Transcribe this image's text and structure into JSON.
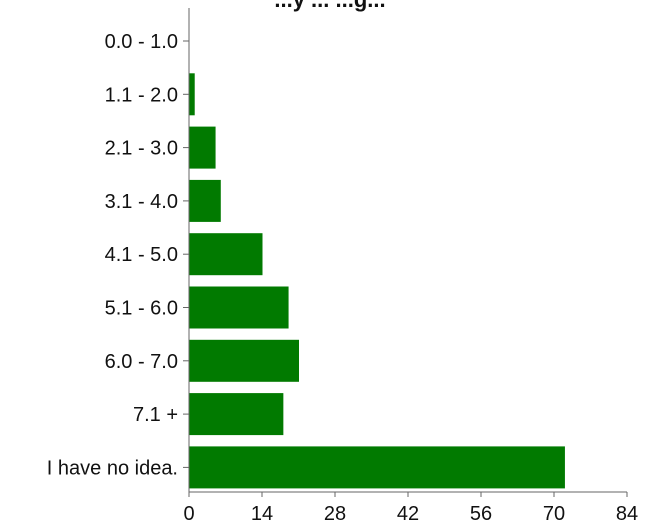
{
  "chart_data": {
    "type": "bar",
    "orientation": "horizontal",
    "title": "...y ... ...g...",
    "categories": [
      "0.0 - 1.0",
      "1.1 - 2.0",
      "2.1 - 3.0",
      "3.1 - 4.0",
      "4.1 - 5.0",
      "5.1 - 6.0",
      "6.0 - 7.0",
      "7.1 +",
      "I have no idea."
    ],
    "values": [
      0,
      1,
      5,
      6,
      14,
      19,
      21,
      18,
      72
    ],
    "xlim": [
      0,
      84
    ],
    "xticks": [
      "0",
      "14",
      "28",
      "42",
      "56",
      "70",
      "84"
    ],
    "xlabel": "",
    "ylabel": "",
    "grid": false,
    "colors": {
      "bar": "#017a00",
      "axis": "#666666"
    }
  }
}
